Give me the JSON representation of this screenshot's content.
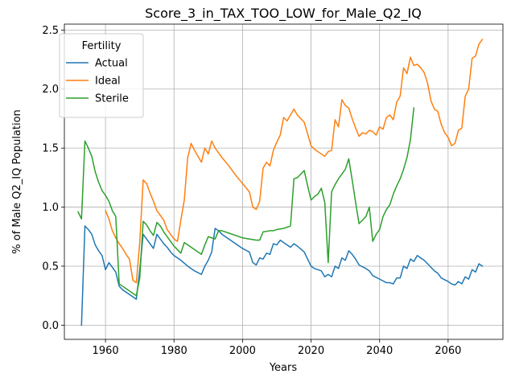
{
  "chart_data": {
    "type": "line",
    "title": "Score_3_in_TAX_TOO_LOW_for_Male_Q2_IQ",
    "xlabel": "Years",
    "ylabel": "% of Male Q2_IQ Population",
    "xlim": [
      1948,
      2076
    ],
    "ylim": [
      -0.12,
      2.55
    ],
    "x_ticks": [
      1960,
      1980,
      2000,
      2020,
      2040,
      2060
    ],
    "y_ticks": [
      0.0,
      0.5,
      1.0,
      1.5,
      2.0,
      2.5
    ],
    "grid": true,
    "legend": {
      "title": "Fertility",
      "position": "top-left"
    },
    "series": [
      {
        "name": "Actual",
        "color": "#1f77b4",
        "points": [
          [
            1953,
            0.0
          ],
          [
            1954,
            0.84
          ],
          [
            1955,
            0.81
          ],
          [
            1956,
            0.77
          ],
          [
            1957,
            0.68
          ],
          [
            1958,
            0.63
          ],
          [
            1959,
            0.59
          ],
          [
            1960,
            0.47
          ],
          [
            1961,
            0.53
          ],
          [
            1962,
            0.49
          ],
          [
            1963,
            0.45
          ],
          [
            1964,
            0.33
          ],
          [
            1965,
            0.3
          ],
          [
            1966,
            0.28
          ],
          [
            1967,
            0.26
          ],
          [
            1968,
            0.24
          ],
          [
            1969,
            0.22
          ],
          [
            1970,
            0.47
          ],
          [
            1971,
            0.77
          ],
          [
            1972,
            0.73
          ],
          [
            1973,
            0.69
          ],
          [
            1974,
            0.65
          ],
          [
            1975,
            0.77
          ],
          [
            1976,
            0.73
          ],
          [
            1977,
            0.69
          ],
          [
            1978,
            0.66
          ],
          [
            1979,
            0.62
          ],
          [
            1980,
            0.59
          ],
          [
            1982,
            0.55
          ],
          [
            1984,
            0.5
          ],
          [
            1986,
            0.46
          ],
          [
            1988,
            0.43
          ],
          [
            1989,
            0.5
          ],
          [
            1990,
            0.55
          ],
          [
            1991,
            0.62
          ],
          [
            1992,
            0.82
          ],
          [
            1993,
            0.8
          ],
          [
            1994,
            0.77
          ],
          [
            1996,
            0.73
          ],
          [
            1998,
            0.69
          ],
          [
            2000,
            0.65
          ],
          [
            2002,
            0.62
          ],
          [
            2003,
            0.53
          ],
          [
            2004,
            0.51
          ],
          [
            2005,
            0.57
          ],
          [
            2006,
            0.56
          ],
          [
            2007,
            0.61
          ],
          [
            2008,
            0.6
          ],
          [
            2009,
            0.69
          ],
          [
            2010,
            0.68
          ],
          [
            2011,
            0.72
          ],
          [
            2012,
            0.7
          ],
          [
            2014,
            0.66
          ],
          [
            2015,
            0.69
          ],
          [
            2016,
            0.67
          ],
          [
            2018,
            0.62
          ],
          [
            2020,
            0.5
          ],
          [
            2021,
            0.48
          ],
          [
            2023,
            0.46
          ],
          [
            2024,
            0.41
          ],
          [
            2025,
            0.43
          ],
          [
            2026,
            0.41
          ],
          [
            2027,
            0.5
          ],
          [
            2028,
            0.48
          ],
          [
            2029,
            0.57
          ],
          [
            2030,
            0.55
          ],
          [
            2031,
            0.63
          ],
          [
            2032,
            0.6
          ],
          [
            2033,
            0.56
          ],
          [
            2034,
            0.51
          ],
          [
            2036,
            0.48
          ],
          [
            2037,
            0.46
          ],
          [
            2038,
            0.42
          ],
          [
            2040,
            0.39
          ],
          [
            2042,
            0.36
          ],
          [
            2043,
            0.36
          ],
          [
            2044,
            0.35
          ],
          [
            2045,
            0.4
          ],
          [
            2046,
            0.4
          ],
          [
            2047,
            0.5
          ],
          [
            2048,
            0.48
          ],
          [
            2049,
            0.56
          ],
          [
            2050,
            0.54
          ],
          [
            2051,
            0.59
          ],
          [
            2052,
            0.57
          ],
          [
            2053,
            0.55
          ],
          [
            2054,
            0.52
          ],
          [
            2056,
            0.46
          ],
          [
            2057,
            0.44
          ],
          [
            2058,
            0.4
          ],
          [
            2060,
            0.37
          ],
          [
            2061,
            0.35
          ],
          [
            2062,
            0.34
          ],
          [
            2063,
            0.37
          ],
          [
            2064,
            0.35
          ],
          [
            2065,
            0.41
          ],
          [
            2066,
            0.39
          ],
          [
            2067,
            0.47
          ],
          [
            2068,
            0.45
          ],
          [
            2069,
            0.52
          ],
          [
            2070,
            0.5
          ]
        ]
      },
      {
        "name": "Ideal",
        "color": "#ff7f0e",
        "points": [
          [
            1960,
            0.97
          ],
          [
            1961,
            0.9
          ],
          [
            1962,
            0.8
          ],
          [
            1963,
            0.74
          ],
          [
            1964,
            0.69
          ],
          [
            1965,
            0.65
          ],
          [
            1966,
            0.6
          ],
          [
            1967,
            0.56
          ],
          [
            1968,
            0.38
          ],
          [
            1969,
            0.36
          ],
          [
            1970,
            0.7
          ],
          [
            1971,
            1.23
          ],
          [
            1972,
            1.2
          ],
          [
            1973,
            1.12
          ],
          [
            1974,
            1.05
          ],
          [
            1975,
            0.97
          ],
          [
            1976,
            0.93
          ],
          [
            1977,
            0.89
          ],
          [
            1978,
            0.81
          ],
          [
            1979,
            0.77
          ],
          [
            1980,
            0.73
          ],
          [
            1981,
            0.71
          ],
          [
            1982,
            0.89
          ],
          [
            1983,
            1.06
          ],
          [
            1984,
            1.42
          ],
          [
            1985,
            1.54
          ],
          [
            1986,
            1.48
          ],
          [
            1987,
            1.43
          ],
          [
            1988,
            1.38
          ],
          [
            1989,
            1.5
          ],
          [
            1990,
            1.45
          ],
          [
            1991,
            1.56
          ],
          [
            1992,
            1.5
          ],
          [
            1994,
            1.42
          ],
          [
            1996,
            1.35
          ],
          [
            1998,
            1.27
          ],
          [
            2000,
            1.2
          ],
          [
            2002,
            1.13
          ],
          [
            2003,
            1.0
          ],
          [
            2004,
            0.98
          ],
          [
            2005,
            1.05
          ],
          [
            2006,
            1.33
          ],
          [
            2007,
            1.38
          ],
          [
            2008,
            1.35
          ],
          [
            2009,
            1.48
          ],
          [
            2010,
            1.55
          ],
          [
            2011,
            1.61
          ],
          [
            2012,
            1.76
          ],
          [
            2013,
            1.73
          ],
          [
            2014,
            1.78
          ],
          [
            2015,
            1.83
          ],
          [
            2016,
            1.78
          ],
          [
            2018,
            1.72
          ],
          [
            2019,
            1.62
          ],
          [
            2020,
            1.52
          ],
          [
            2021,
            1.49
          ],
          [
            2022,
            1.47
          ],
          [
            2024,
            1.43
          ],
          [
            2025,
            1.47
          ],
          [
            2026,
            1.48
          ],
          [
            2027,
            1.74
          ],
          [
            2028,
            1.68
          ],
          [
            2029,
            1.91
          ],
          [
            2030,
            1.86
          ],
          [
            2031,
            1.84
          ],
          [
            2032,
            1.75
          ],
          [
            2033,
            1.67
          ],
          [
            2034,
            1.6
          ],
          [
            2035,
            1.63
          ],
          [
            2036,
            1.62
          ],
          [
            2037,
            1.65
          ],
          [
            2038,
            1.64
          ],
          [
            2039,
            1.61
          ],
          [
            2040,
            1.68
          ],
          [
            2041,
            1.66
          ],
          [
            2042,
            1.76
          ],
          [
            2043,
            1.78
          ],
          [
            2044,
            1.74
          ],
          [
            2045,
            1.89
          ],
          [
            2046,
            1.94
          ],
          [
            2047,
            2.18
          ],
          [
            2048,
            2.13
          ],
          [
            2049,
            2.27
          ],
          [
            2050,
            2.2
          ],
          [
            2051,
            2.21
          ],
          [
            2052,
            2.18
          ],
          [
            2053,
            2.14
          ],
          [
            2054,
            2.05
          ],
          [
            2055,
            1.9
          ],
          [
            2056,
            1.83
          ],
          [
            2057,
            1.81
          ],
          [
            2058,
            1.7
          ],
          [
            2059,
            1.63
          ],
          [
            2060,
            1.59
          ],
          [
            2061,
            1.52
          ],
          [
            2062,
            1.54
          ],
          [
            2063,
            1.65
          ],
          [
            2064,
            1.67
          ],
          [
            2065,
            1.94
          ],
          [
            2066,
            2.0
          ],
          [
            2067,
            2.26
          ],
          [
            2068,
            2.28
          ],
          [
            2069,
            2.38
          ],
          [
            2070,
            2.42
          ]
        ]
      },
      {
        "name": "Sterile",
        "color": "#2ca02c",
        "points": [
          [
            1952,
            0.96
          ],
          [
            1953,
            0.9
          ],
          [
            1954,
            1.56
          ],
          [
            1955,
            1.5
          ],
          [
            1956,
            1.43
          ],
          [
            1957,
            1.3
          ],
          [
            1958,
            1.21
          ],
          [
            1959,
            1.14
          ],
          [
            1960,
            1.1
          ],
          [
            1961,
            1.05
          ],
          [
            1962,
            0.97
          ],
          [
            1963,
            0.92
          ],
          [
            1964,
            0.35
          ],
          [
            1965,
            0.33
          ],
          [
            1966,
            0.31
          ],
          [
            1967,
            0.29
          ],
          [
            1968,
            0.27
          ],
          [
            1969,
            0.25
          ],
          [
            1970,
            0.4
          ],
          [
            1971,
            0.88
          ],
          [
            1972,
            0.85
          ],
          [
            1973,
            0.8
          ],
          [
            1974,
            0.76
          ],
          [
            1975,
            0.87
          ],
          [
            1976,
            0.84
          ],
          [
            1977,
            0.79
          ],
          [
            1978,
            0.75
          ],
          [
            1979,
            0.71
          ],
          [
            1980,
            0.67
          ],
          [
            1981,
            0.64
          ],
          [
            1982,
            0.61
          ],
          [
            1983,
            0.7
          ],
          [
            1984,
            0.68
          ],
          [
            1986,
            0.64
          ],
          [
            1988,
            0.6
          ],
          [
            1989,
            0.68
          ],
          [
            1990,
            0.75
          ],
          [
            1991,
            0.74
          ],
          [
            1992,
            0.73
          ],
          [
            1993,
            0.8
          ],
          [
            1994,
            0.8
          ],
          [
            1996,
            0.78
          ],
          [
            1998,
            0.76
          ],
          [
            2000,
            0.74
          ],
          [
            2002,
            0.73
          ],
          [
            2004,
            0.72
          ],
          [
            2005,
            0.72
          ],
          [
            2006,
            0.79
          ],
          [
            2008,
            0.8
          ],
          [
            2009,
            0.8
          ],
          [
            2010,
            0.81
          ],
          [
            2012,
            0.82
          ],
          [
            2014,
            0.84
          ],
          [
            2015,
            1.24
          ],
          [
            2016,
            1.25
          ],
          [
            2017,
            1.28
          ],
          [
            2018,
            1.31
          ],
          [
            2019,
            1.18
          ],
          [
            2020,
            1.06
          ],
          [
            2021,
            1.09
          ],
          [
            2022,
            1.11
          ],
          [
            2023,
            1.16
          ],
          [
            2024,
            1.04
          ],
          [
            2025,
            0.53
          ],
          [
            2026,
            1.13
          ],
          [
            2027,
            1.19
          ],
          [
            2028,
            1.24
          ],
          [
            2029,
            1.28
          ],
          [
            2030,
            1.32
          ],
          [
            2031,
            1.41
          ],
          [
            2032,
            1.23
          ],
          [
            2033,
            1.04
          ],
          [
            2034,
            0.86
          ],
          [
            2035,
            0.89
          ],
          [
            2036,
            0.92
          ],
          [
            2037,
            1.0
          ],
          [
            2038,
            0.71
          ],
          [
            2039,
            0.77
          ],
          [
            2040,
            0.81
          ],
          [
            2041,
            0.92
          ],
          [
            2042,
            0.98
          ],
          [
            2043,
            1.02
          ],
          [
            2044,
            1.11
          ],
          [
            2045,
            1.18
          ],
          [
            2046,
            1.24
          ],
          [
            2047,
            1.32
          ],
          [
            2048,
            1.42
          ],
          [
            2049,
            1.57
          ],
          [
            2050,
            1.84
          ]
        ]
      }
    ]
  }
}
